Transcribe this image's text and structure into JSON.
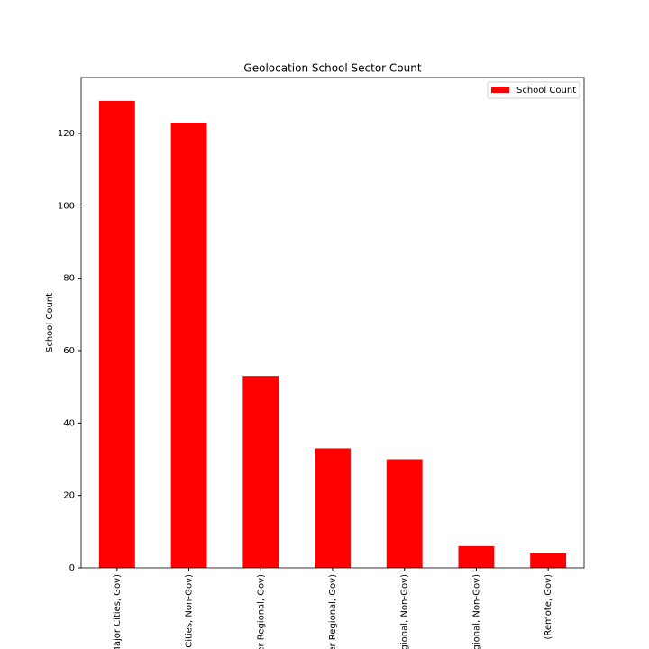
{
  "chart_data": {
    "type": "bar",
    "title": "Geolocation School Sector Count",
    "y_label": "School Count",
    "categories": [
      "Major Cities, Gov)",
      "Cities, Non-Gov)",
      "er Regional, Gov)",
      "er Regional, Gov)",
      "gional, Non-Gov)",
      "gional, Non-Gov)",
      "(Remote, Gov)"
    ],
    "series": [
      {
        "name": "School Count",
        "color": "#ff0000",
        "values": [
          129,
          123,
          53,
          33,
          30,
          6,
          4
        ]
      }
    ],
    "ylim": [
      0,
      135.45
    ],
    "yticks": [
      0,
      20,
      40,
      60,
      80,
      100,
      120
    ],
    "legend": "upper right",
    "grid": false
  }
}
